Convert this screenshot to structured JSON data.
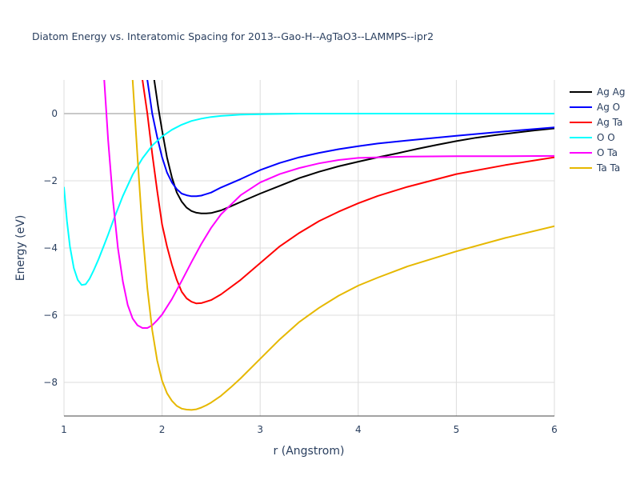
{
  "chart_data": {
    "type": "line",
    "title": "Diatom Energy vs. Interatomic Spacing for 2013--Gao-H--AgTaO3--LAMMPS--ipr2",
    "xlabel": "r (Angstrom)",
    "ylabel": "Energy (eV)",
    "xlim": [
      1,
      6
    ],
    "ylim": [
      -9,
      1
    ],
    "xticks": [
      1,
      2,
      3,
      4,
      5,
      6
    ],
    "xtick_labels": [
      "1",
      "2",
      "3",
      "4",
      "5",
      "6"
    ],
    "yticks": [
      0,
      -2,
      -4,
      -6,
      -8
    ],
    "ytick_labels": [
      "0",
      "−2",
      "−4",
      "−6",
      "−8"
    ],
    "grid": true,
    "legend_position": "top-right",
    "series": [
      {
        "name": "Ag Ag",
        "color": "#000000",
        "x": [
          1.92,
          1.96,
          2.0,
          2.05,
          2.1,
          2.15,
          2.2,
          2.25,
          2.3,
          2.35,
          2.4,
          2.45,
          2.5,
          2.6,
          2.7,
          2.8,
          3.0,
          3.2,
          3.4,
          3.6,
          3.8,
          4.0,
          4.2,
          4.4,
          4.6,
          4.8,
          5.0,
          5.2,
          5.4,
          5.6,
          5.8,
          6.0
        ],
        "y": [
          1.0,
          0.2,
          -0.5,
          -1.3,
          -1.9,
          -2.35,
          -2.62,
          -2.8,
          -2.9,
          -2.95,
          -2.97,
          -2.97,
          -2.96,
          -2.88,
          -2.76,
          -2.63,
          -2.38,
          -2.15,
          -1.92,
          -1.73,
          -1.57,
          -1.43,
          -1.3,
          -1.18,
          -1.05,
          -0.93,
          -0.82,
          -0.72,
          -0.64,
          -0.57,
          -0.5,
          -0.44
        ]
      },
      {
        "name": "Ag O",
        "color": "#0000ff",
        "x": [
          1.85,
          1.9,
          1.95,
          2.0,
          2.05,
          2.1,
          2.15,
          2.2,
          2.25,
          2.3,
          2.35,
          2.4,
          2.5,
          2.6,
          2.8,
          3.0,
          3.2,
          3.4,
          3.6,
          3.8,
          4.0,
          4.2,
          4.5,
          5.0,
          5.5,
          6.0
        ],
        "y": [
          1.0,
          0.0,
          -0.7,
          -1.3,
          -1.75,
          -2.05,
          -2.25,
          -2.38,
          -2.43,
          -2.46,
          -2.46,
          -2.44,
          -2.35,
          -2.2,
          -1.95,
          -1.68,
          -1.47,
          -1.3,
          -1.17,
          -1.06,
          -0.97,
          -0.89,
          -0.8,
          -0.66,
          -0.53,
          -0.41
        ]
      },
      {
        "name": "Ag Ta",
        "color": "#ff0000",
        "x": [
          1.8,
          1.85,
          1.9,
          1.95,
          2.0,
          2.05,
          2.1,
          2.15,
          2.2,
          2.25,
          2.3,
          2.35,
          2.4,
          2.5,
          2.6,
          2.8,
          3.0,
          3.2,
          3.4,
          3.6,
          3.8,
          4.0,
          4.2,
          4.5,
          5.0,
          5.5,
          6.0
        ],
        "y": [
          1.0,
          0.0,
          -1.2,
          -2.3,
          -3.3,
          -3.95,
          -4.5,
          -4.95,
          -5.3,
          -5.5,
          -5.6,
          -5.65,
          -5.64,
          -5.55,
          -5.38,
          -4.95,
          -4.45,
          -3.95,
          -3.55,
          -3.2,
          -2.92,
          -2.67,
          -2.45,
          -2.18,
          -1.8,
          -1.53,
          -1.3
        ]
      },
      {
        "name": "O O",
        "color": "#00ffff",
        "x": [
          1.0,
          1.03,
          1.06,
          1.1,
          1.14,
          1.18,
          1.22,
          1.26,
          1.3,
          1.35,
          1.4,
          1.45,
          1.5,
          1.6,
          1.7,
          1.8,
          1.9,
          2.0,
          2.1,
          2.2,
          2.3,
          2.4,
          2.5,
          2.6,
          2.7,
          2.8,
          3.0,
          3.2,
          3.4,
          3.6,
          3.8,
          4.0,
          4.5,
          5.0,
          5.5,
          6.0
        ],
        "y": [
          -2.2,
          -3.2,
          -3.95,
          -4.6,
          -4.95,
          -5.1,
          -5.08,
          -4.92,
          -4.68,
          -4.35,
          -3.98,
          -3.6,
          -3.2,
          -2.45,
          -1.82,
          -1.33,
          -0.95,
          -0.68,
          -0.48,
          -0.33,
          -0.22,
          -0.15,
          -0.1,
          -0.07,
          -0.05,
          -0.03,
          -0.02,
          -0.01,
          0.0,
          0.0,
          0.0,
          0.0,
          0.0,
          0.0,
          0.0,
          0.0
        ]
      },
      {
        "name": "O Ta",
        "color": "#ff00ff",
        "x": [
          1.41,
          1.45,
          1.5,
          1.55,
          1.6,
          1.65,
          1.7,
          1.75,
          1.8,
          1.85,
          1.9,
          1.95,
          2.0,
          2.1,
          2.2,
          2.3,
          2.4,
          2.5,
          2.6,
          2.8,
          3.0,
          3.2,
          3.4,
          3.6,
          3.8,
          4.0,
          4.5,
          5.0,
          5.5,
          6.0
        ],
        "y": [
          1.0,
          -0.8,
          -2.6,
          -4.0,
          -5.0,
          -5.7,
          -6.1,
          -6.3,
          -6.38,
          -6.38,
          -6.3,
          -6.15,
          -5.98,
          -5.52,
          -4.98,
          -4.42,
          -3.88,
          -3.4,
          -3.0,
          -2.43,
          -2.05,
          -1.8,
          -1.62,
          -1.48,
          -1.38,
          -1.32,
          -1.28,
          -1.27,
          -1.27,
          -1.26
        ]
      },
      {
        "name": "Ta Ta",
        "color": "#e6b800",
        "x": [
          1.7,
          1.75,
          1.8,
          1.85,
          1.9,
          1.95,
          2.0,
          2.05,
          2.1,
          2.15,
          2.2,
          2.25,
          2.3,
          2.35,
          2.4,
          2.45,
          2.5,
          2.6,
          2.7,
          2.8,
          3.0,
          3.2,
          3.4,
          3.6,
          3.8,
          4.0,
          4.2,
          4.5,
          5.0,
          5.5,
          6.0
        ],
        "y": [
          1.0,
          -1.3,
          -3.5,
          -5.2,
          -6.45,
          -7.35,
          -7.95,
          -8.32,
          -8.55,
          -8.7,
          -8.78,
          -8.81,
          -8.82,
          -8.8,
          -8.75,
          -8.68,
          -8.6,
          -8.4,
          -8.15,
          -7.88,
          -7.3,
          -6.72,
          -6.2,
          -5.78,
          -5.42,
          -5.12,
          -4.88,
          -4.55,
          -4.1,
          -3.7,
          -3.35
        ]
      }
    ]
  }
}
